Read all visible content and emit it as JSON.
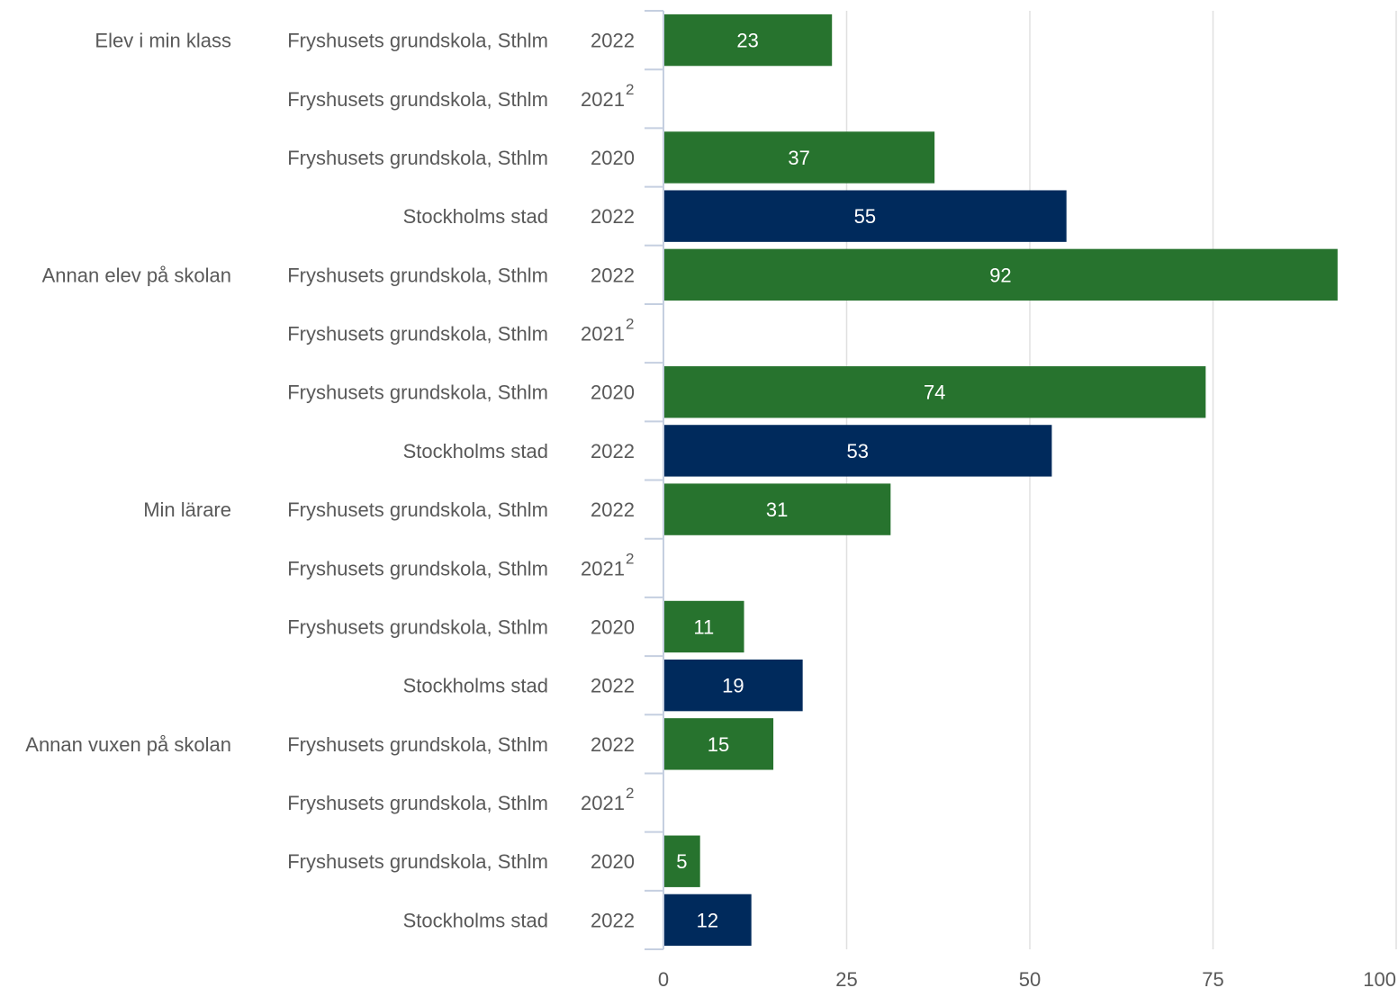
{
  "chart_data": {
    "type": "bar",
    "orientation": "horizontal",
    "xlim": [
      0,
      100
    ],
    "x_ticks": [
      "0",
      "25",
      "50",
      "75",
      "100"
    ],
    "grid": true,
    "colors": {
      "school": "#27732e",
      "city": "#002a5c",
      "grid": "#e0e0e0",
      "axis": "#c5cfe0"
    },
    "groups": [
      {
        "name": "Elev i min klass",
        "rows": [
          {
            "entity": "Fryshusets grundskola, Sthlm",
            "year": "2022",
            "sup": "",
            "value": 23,
            "kind": "school"
          },
          {
            "entity": "Fryshusets grundskola, Sthlm",
            "year": "2021",
            "sup": "2",
            "value": null,
            "kind": "school"
          },
          {
            "entity": "Fryshusets grundskola, Sthlm",
            "year": "2020",
            "sup": "",
            "value": 37,
            "kind": "school"
          },
          {
            "entity": "Stockholms stad",
            "year": "2022",
            "sup": "",
            "value": 55,
            "kind": "city"
          }
        ]
      },
      {
        "name": "Annan elev på skolan",
        "rows": [
          {
            "entity": "Fryshusets grundskola, Sthlm",
            "year": "2022",
            "sup": "",
            "value": 92,
            "kind": "school"
          },
          {
            "entity": "Fryshusets grundskola, Sthlm",
            "year": "2021",
            "sup": "2",
            "value": null,
            "kind": "school"
          },
          {
            "entity": "Fryshusets grundskola, Sthlm",
            "year": "2020",
            "sup": "",
            "value": 74,
            "kind": "school"
          },
          {
            "entity": "Stockholms stad",
            "year": "2022",
            "sup": "",
            "value": 53,
            "kind": "city"
          }
        ]
      },
      {
        "name": "Min lärare",
        "rows": [
          {
            "entity": "Fryshusets grundskola, Sthlm",
            "year": "2022",
            "sup": "",
            "value": 31,
            "kind": "school"
          },
          {
            "entity": "Fryshusets grundskola, Sthlm",
            "year": "2021",
            "sup": "2",
            "value": null,
            "kind": "school"
          },
          {
            "entity": "Fryshusets grundskola, Sthlm",
            "year": "2020",
            "sup": "",
            "value": 11,
            "kind": "school"
          },
          {
            "entity": "Stockholms stad",
            "year": "2022",
            "sup": "",
            "value": 19,
            "kind": "city"
          }
        ]
      },
      {
        "name": "Annan vuxen på skolan",
        "rows": [
          {
            "entity": "Fryshusets grundskola, Sthlm",
            "year": "2022",
            "sup": "",
            "value": 15,
            "kind": "school"
          },
          {
            "entity": "Fryshusets grundskola, Sthlm",
            "year": "2021",
            "sup": "2",
            "value": null,
            "kind": "school"
          },
          {
            "entity": "Fryshusets grundskola, Sthlm",
            "year": "2020",
            "sup": "",
            "value": 5,
            "kind": "school"
          },
          {
            "entity": "Stockholms stad",
            "year": "2022",
            "sup": "",
            "value": 12,
            "kind": "city"
          }
        ]
      }
    ]
  }
}
